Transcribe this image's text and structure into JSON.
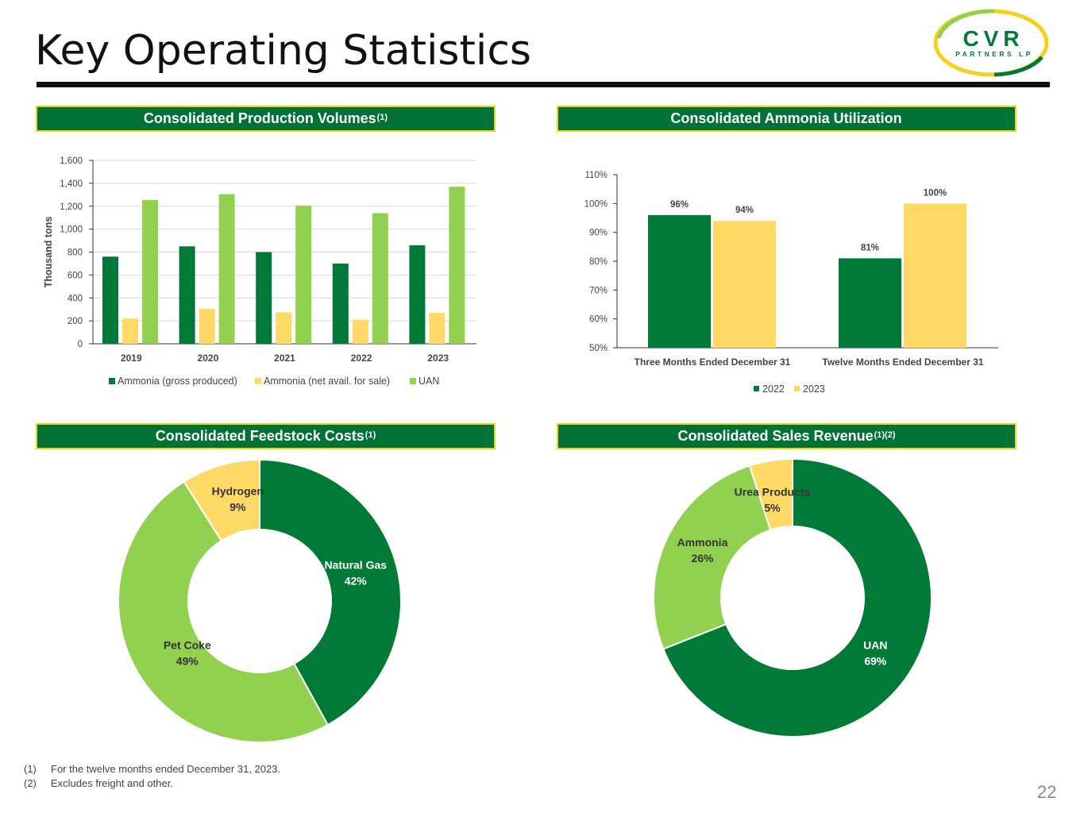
{
  "page": {
    "title": "Key Operating Statistics",
    "page_number": "22"
  },
  "logo": {
    "main": "CVR",
    "sub": "PARTNERS LP"
  },
  "panels": {
    "production": {
      "title": "Consolidated Production Volumes",
      "sup": "(1)"
    },
    "utilization": {
      "title": "Consolidated Ammonia Utilization",
      "sup": ""
    },
    "feedstock": {
      "title": "Consolidated Feedstock Costs",
      "sup": "(1)"
    },
    "revenue": {
      "title": "Consolidated Sales Revenue",
      "sup": "(1)(2)"
    }
  },
  "footnotes": [
    {
      "num": "(1)",
      "text": "For the twelve months ended December 31, 2023."
    },
    {
      "num": "(2)",
      "text": "Excludes freight and other."
    }
  ],
  "colors": {
    "dark_green": "#007a36",
    "light_green": "#92d050",
    "yellow": "#ffd966",
    "header_bg": "#007236",
    "header_border": "#f3d21c"
  },
  "chart_data": [
    {
      "id": "production",
      "type": "bar",
      "ylabel": "Thousand tons",
      "ylim": [
        0,
        1600
      ],
      "yticks": [
        "0",
        "200",
        "400",
        "600",
        "800",
        "1,000",
        "1,200",
        "1,400",
        "1,600"
      ],
      "categories": [
        "2019",
        "2020",
        "2021",
        "2022",
        "2023"
      ],
      "series": [
        {
          "name": "Ammonia (gross produced)",
          "color": "#007a36",
          "values": [
            760,
            850,
            800,
            700,
            860
          ]
        },
        {
          "name": "Ammonia (net avail. for sale)",
          "color": "#ffd966",
          "values": [
            220,
            305,
            275,
            210,
            270
          ]
        },
        {
          "name": "UAN",
          "color": "#92d050",
          "values": [
            1255,
            1305,
            1205,
            1140,
            1370
          ]
        }
      ],
      "grid": true,
      "legend": "bottom"
    },
    {
      "id": "utilization",
      "type": "bar",
      "ylim": [
        50,
        110
      ],
      "yticks": [
        "50%",
        "60%",
        "70%",
        "80%",
        "90%",
        "100%",
        "110%"
      ],
      "categories": [
        "Three Months Ended December 31",
        "Twelve Months Ended December 31"
      ],
      "series": [
        {
          "name": "2022",
          "color": "#007a36",
          "values": [
            96,
            81
          ],
          "labels": [
            "96%",
            "81%"
          ]
        },
        {
          "name": "2023",
          "color": "#ffd966",
          "values": [
            94,
            100
          ],
          "labels": [
            "94%",
            "100%"
          ]
        }
      ],
      "grid": false,
      "legend": "bottom"
    },
    {
      "id": "feedstock",
      "type": "pie",
      "donut": true,
      "slices": [
        {
          "label": "Natural Gas",
          "value": 42,
          "pct": "42%",
          "color": "#007a36",
          "text_color": "#ffffff"
        },
        {
          "label": "Pet Coke",
          "value": 49,
          "pct": "49%",
          "color": "#92d050",
          "text_color": "#333333"
        },
        {
          "label": "Hydrogen",
          "value": 9,
          "pct": "9%",
          "color": "#ffd966",
          "text_color": "#333333"
        }
      ]
    },
    {
      "id": "revenue",
      "type": "pie",
      "donut": true,
      "slices": [
        {
          "label": "UAN",
          "value": 69,
          "pct": "69%",
          "color": "#007a36",
          "text_color": "#ffffff"
        },
        {
          "label": "Ammonia",
          "value": 26,
          "pct": "26%",
          "color": "#92d050",
          "text_color": "#333333"
        },
        {
          "label": "Urea Products",
          "value": 5,
          "pct": "5%",
          "color": "#ffd966",
          "text_color": "#333333"
        }
      ]
    }
  ]
}
